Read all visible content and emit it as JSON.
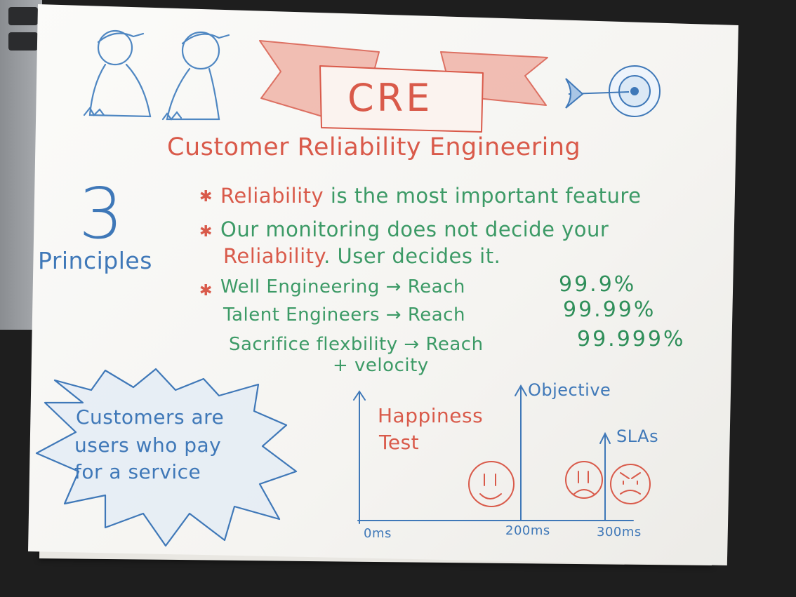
{
  "title_banner": {
    "text": "CRE"
  },
  "subtitle": "Customer Reliability Engineering",
  "principles": {
    "number": "3",
    "label": "Principles"
  },
  "bullets": {
    "b1": {
      "keyword": "Reliability",
      "rest": "is the most important feature"
    },
    "b2": {
      "line1": "Our monitoring does not decide your",
      "line2_keyword": "Reliability",
      "line2_rest": ". User decides it."
    },
    "b3": {
      "rows": [
        {
          "label": "Well Engineering",
          "arrow": "→ Reach",
          "value": "99.9%"
        },
        {
          "label": "Talent Engineers",
          "arrow": "→ Reach",
          "value": "99.99%"
        },
        {
          "label": "Sacrifice flexbility",
          "arrow": "→ Reach",
          "value": "99.999%"
        }
      ],
      "extra": "+ velocity"
    }
  },
  "callout": {
    "line1": "Customers are",
    "line2": "users who pay",
    "line3": "for a service"
  },
  "graph": {
    "title_line1": "Happiness",
    "title_line2": "Test",
    "objective_label": "Objective",
    "sla_label": "SLAs",
    "x_ticks": [
      "0ms",
      "200ms",
      "300ms"
    ]
  },
  "colors": {
    "red": "#d95a4a",
    "green": "#3c9a66",
    "blue": "#3f78b8"
  }
}
